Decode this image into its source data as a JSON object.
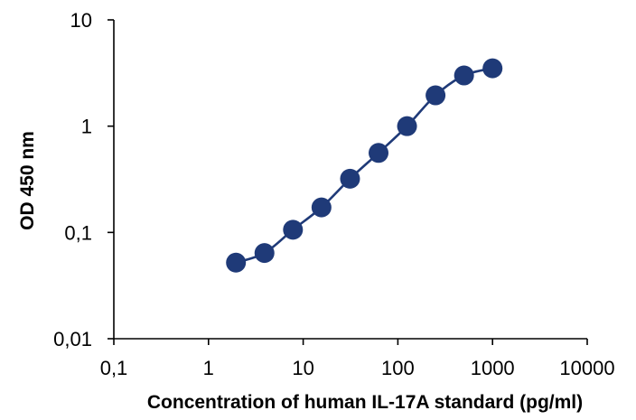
{
  "chart_data": {
    "type": "scatter",
    "title": "",
    "xlabel": "Concentration of human IL-17A standard (pg/ml)",
    "ylabel": "OD 450 nm",
    "x_scale": "log",
    "y_scale": "log",
    "xlim": [
      0.1,
      10000
    ],
    "ylim": [
      0.01,
      10
    ],
    "x_ticks": [
      0.1,
      1,
      10,
      100,
      1000,
      10000
    ],
    "x_tick_labels": [
      "0,1",
      "1",
      "10",
      "100",
      "1000",
      "10000"
    ],
    "y_ticks": [
      0.01,
      0.1,
      1,
      10
    ],
    "y_tick_labels": [
      "0,01",
      "0,1",
      "1",
      "10"
    ],
    "grid": false,
    "legend": "none",
    "series": [
      {
        "color": "#1f3a78",
        "line": "smooth",
        "x": [
          1.95,
          3.9,
          7.8,
          15.6,
          31.25,
          62.5,
          125,
          250,
          500,
          1000
        ],
        "y": [
          0.052,
          0.064,
          0.106,
          0.172,
          0.32,
          0.56,
          1.0,
          1.95,
          3.0,
          3.5
        ]
      }
    ]
  }
}
